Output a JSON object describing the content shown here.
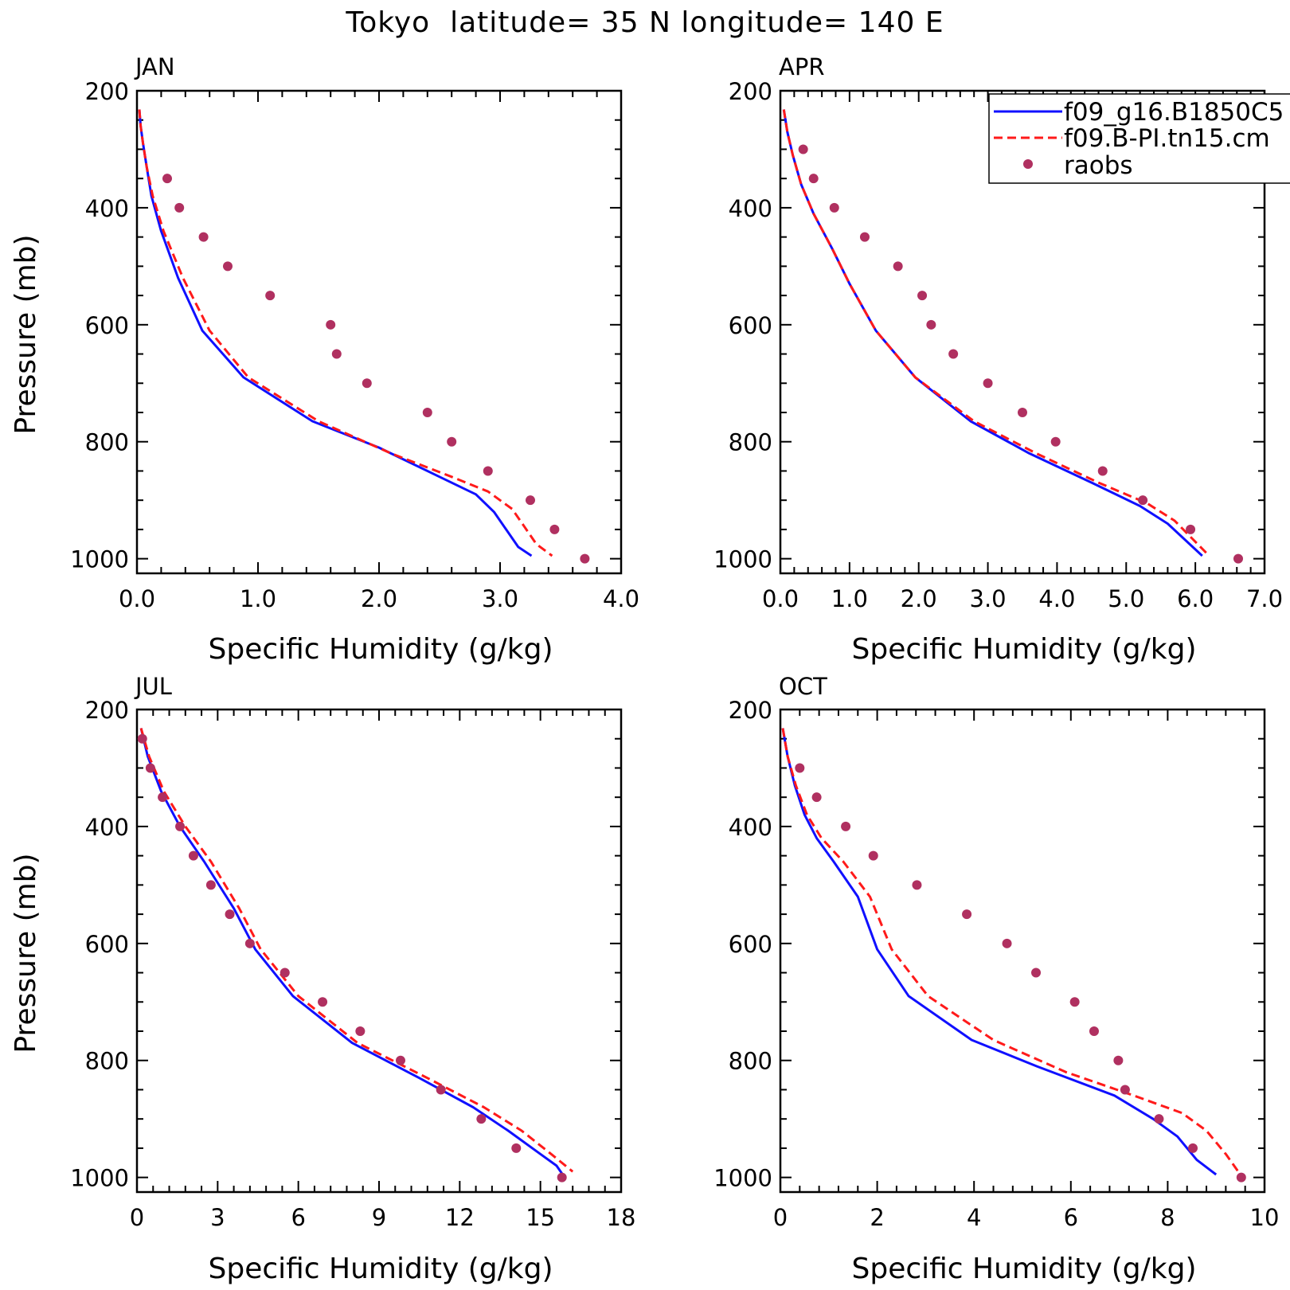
{
  "figure": {
    "title": "Tokyo  latitude= 35 N longitude= 140 E"
  },
  "legend": {
    "entries": [
      {
        "label": "f09_g16.B1850C5",
        "style": "solid",
        "color": "#1010ff"
      },
      {
        "label": "f09.B-PI.tn15.cm",
        "style": "dashed",
        "color": "#ff1a1a"
      },
      {
        "label": "raobs",
        "style": "dots",
        "color": "#b03060"
      }
    ]
  },
  "colors": {
    "model_a": "#1010ff",
    "model_b": "#ff1a1a",
    "obs": "#b03060"
  },
  "chart_data": [
    {
      "type": "line",
      "panel": "JAN",
      "title": "JAN",
      "xlabel": "Specific Humidity (g/kg)",
      "ylabel": "Pressure (mb)",
      "xlim": [
        0,
        4
      ],
      "ylim": [
        1025,
        200
      ],
      "x_ticks": [
        "0.0",
        "1.0",
        "2.0",
        "3.0",
        "4.0"
      ],
      "y_ticks": [
        "200",
        "400",
        "600",
        "800",
        "1000"
      ],
      "series": [
        {
          "name": "f09_g16.B1850C5",
          "style": "solid",
          "x": [
            0.02,
            0.03,
            0.05,
            0.08,
            0.12,
            0.2,
            0.34,
            0.54,
            0.88,
            1.45,
            2.0,
            2.5,
            2.8,
            2.95,
            3.05,
            3.15,
            3.26
          ],
          "y": [
            232,
            260,
            290,
            330,
            380,
            440,
            520,
            610,
            690,
            765,
            810,
            860,
            890,
            920,
            950,
            980,
            995
          ]
        },
        {
          "name": "f09.B-PI.tn15.cm",
          "style": "dashed",
          "x": [
            0.02,
            0.03,
            0.05,
            0.08,
            0.13,
            0.22,
            0.38,
            0.6,
            0.92,
            1.5,
            2.1,
            2.6,
            2.9,
            3.1,
            3.2,
            3.3,
            3.43
          ],
          "y": [
            232,
            260,
            290,
            330,
            380,
            440,
            520,
            610,
            690,
            765,
            820,
            860,
            885,
            915,
            945,
            975,
            995
          ]
        },
        {
          "name": "raobs",
          "style": "dots",
          "x": [
            0.25,
            0.35,
            0.55,
            0.75,
            1.1,
            1.6,
            1.65,
            1.9,
            2.4,
            2.6,
            2.9,
            3.25,
            3.45,
            3.7
          ],
          "y": [
            350,
            400,
            450,
            500,
            550,
            600,
            650,
            700,
            750,
            800,
            850,
            900,
            950,
            1000
          ]
        }
      ]
    },
    {
      "type": "line",
      "panel": "APR",
      "title": "APR",
      "xlabel": "Specific Humidity (g/kg)",
      "ylabel": "Pressure (mb)",
      "xlim": [
        0,
        7
      ],
      "ylim": [
        1025,
        200
      ],
      "x_ticks": [
        "0.0",
        "1.0",
        "2.0",
        "3.0",
        "4.0",
        "5.0",
        "6.0",
        "7.0"
      ],
      "y_ticks": [
        "200",
        "400",
        "600",
        "800",
        "1000"
      ],
      "series": [
        {
          "name": "f09_g16.B1850C5",
          "style": "solid",
          "x": [
            0.05,
            0.1,
            0.18,
            0.3,
            0.48,
            0.75,
            1.0,
            1.38,
            1.95,
            2.75,
            3.6,
            4.5,
            5.2,
            5.6,
            6.1
          ],
          "y": [
            232,
            270,
            310,
            360,
            410,
            470,
            530,
            610,
            690,
            765,
            820,
            870,
            910,
            940,
            995
          ]
        },
        {
          "name": "f09.B-PI.tn15.cm",
          "style": "dashed",
          "x": [
            0.05,
            0.1,
            0.18,
            0.3,
            0.48,
            0.75,
            1.0,
            1.38,
            1.95,
            2.8,
            3.7,
            4.6,
            5.3,
            5.7,
            6.2
          ],
          "y": [
            232,
            270,
            310,
            360,
            410,
            470,
            530,
            610,
            690,
            765,
            820,
            870,
            905,
            935,
            995
          ]
        },
        {
          "name": "raobs",
          "style": "dots",
          "x": [
            0.33,
            0.48,
            0.78,
            1.22,
            1.7,
            2.05,
            2.18,
            2.5,
            3.0,
            3.5,
            3.98,
            4.66,
            5.24,
            5.93,
            6.62
          ],
          "y": [
            300,
            350,
            400,
            450,
            500,
            550,
            600,
            650,
            700,
            750,
            800,
            850,
            900,
            950,
            1000
          ]
        }
      ]
    },
    {
      "type": "line",
      "panel": "JUL",
      "title": "JUL",
      "xlabel": "Specific Humidity (g/kg)",
      "ylabel": "Pressure (mb)",
      "xlim": [
        0,
        18
      ],
      "ylim": [
        1025,
        200
      ],
      "x_ticks": [
        "0",
        "3",
        "6",
        "9",
        "12",
        "15",
        "18"
      ],
      "y_ticks": [
        "200",
        "400",
        "600",
        "800",
        "1000"
      ],
      "series": [
        {
          "name": "f09_g16.B1850C5",
          "style": "solid",
          "x": [
            0.15,
            0.4,
            0.9,
            1.6,
            2.5,
            3.6,
            4.4,
            5.8,
            8.0,
            10.5,
            12.5,
            13.8,
            15.0,
            15.6,
            15.9
          ],
          "y": [
            232,
            280,
            340,
            400,
            460,
            540,
            610,
            690,
            770,
            830,
            880,
            920,
            960,
            980,
            1000
          ]
        },
        {
          "name": "f09.B-PI.tn15.cm",
          "style": "dashed",
          "x": [
            0.15,
            0.45,
            1.0,
            1.8,
            2.75,
            3.8,
            4.6,
            6.0,
            8.2,
            10.8,
            12.9,
            14.3,
            15.4,
            16.2
          ],
          "y": [
            232,
            280,
            340,
            400,
            460,
            540,
            610,
            690,
            770,
            830,
            880,
            920,
            960,
            990
          ]
        },
        {
          "name": "raobs",
          "style": "dots",
          "x": [
            0.2,
            0.5,
            0.95,
            1.6,
            2.1,
            2.75,
            3.45,
            4.2,
            5.5,
            6.9,
            8.3,
            9.8,
            11.3,
            12.8,
            14.1,
            15.8
          ],
          "y": [
            250,
            300,
            350,
            400,
            450,
            500,
            550,
            600,
            650,
            700,
            750,
            800,
            850,
            900,
            950,
            1000
          ]
        }
      ]
    },
    {
      "type": "line",
      "panel": "OCT",
      "title": "OCT",
      "xlabel": "Specific Humidity (g/kg)",
      "ylabel": "Pressure (mb)",
      "xlim": [
        0,
        10
      ],
      "ylim": [
        1025,
        200
      ],
      "x_ticks": [
        "0",
        "2",
        "4",
        "6",
        "8",
        "10"
      ],
      "y_ticks": [
        "200",
        "400",
        "600",
        "800",
        "1000"
      ],
      "series": [
        {
          "name": "f09_g16.B1850C5",
          "style": "solid",
          "x": [
            0.05,
            0.15,
            0.3,
            0.5,
            0.75,
            1.1,
            1.6,
            2.0,
            2.65,
            3.95,
            5.3,
            6.9,
            7.7,
            8.2,
            8.6,
            9.0
          ],
          "y": [
            232,
            280,
            330,
            380,
            420,
            460,
            520,
            610,
            690,
            765,
            810,
            860,
            900,
            930,
            970,
            995
          ]
        },
        {
          "name": "f09.B-PI.tn15.cm",
          "style": "dashed",
          "x": [
            0.05,
            0.15,
            0.32,
            0.55,
            0.85,
            1.3,
            1.85,
            2.3,
            3.05,
            4.4,
            5.9,
            7.3,
            8.3,
            8.8,
            9.2,
            9.5
          ],
          "y": [
            232,
            280,
            330,
            380,
            420,
            460,
            520,
            610,
            690,
            765,
            820,
            860,
            890,
            920,
            960,
            995
          ]
        },
        {
          "name": "raobs",
          "style": "dots",
          "x": [
            0.4,
            0.75,
            1.35,
            1.92,
            2.82,
            3.85,
            4.68,
            5.28,
            6.08,
            6.48,
            6.98,
            7.12,
            7.82,
            8.52,
            9.52
          ],
          "y": [
            300,
            350,
            400,
            450,
            500,
            550,
            600,
            650,
            700,
            750,
            800,
            850,
            900,
            950,
            1000
          ]
        }
      ]
    }
  ]
}
